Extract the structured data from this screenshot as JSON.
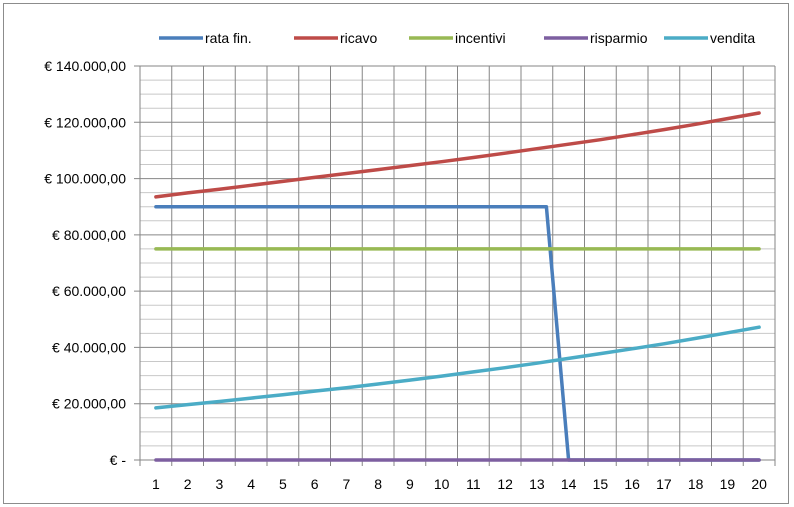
{
  "chart_data": {
    "type": "line",
    "x": [
      1,
      2,
      3,
      4,
      5,
      6,
      7,
      8,
      9,
      10,
      11,
      12,
      13,
      14,
      15,
      16,
      17,
      18,
      19,
      20
    ],
    "x_tick_labels": [
      "1",
      "2",
      "3",
      "4",
      "5",
      "6",
      "7",
      "8",
      "9",
      "10",
      "11",
      "12",
      "13",
      "14",
      "15",
      "16",
      "17",
      "18",
      "19",
      "20"
    ],
    "ylim": [
      0,
      140000
    ],
    "y_ticks": [
      0,
      20000,
      40000,
      60000,
      80000,
      100000,
      120000,
      140000
    ],
    "y_tick_labels": [
      "€ -",
      "€ 20.000,00",
      "€ 40.000,00",
      "€ 60.000,00",
      "€ 80.000,00",
      "€ 100.000,00",
      "€ 120.000,00",
      "€ 140.000,00"
    ],
    "grid": true,
    "legend_position": "top",
    "series": [
      {
        "name": "rata fin.",
        "color": "#4a7ebb",
        "values": [
          90000,
          90000,
          90000,
          90000,
          90000,
          90000,
          90000,
          90000,
          90000,
          90000,
          90000,
          90000,
          90000,
          0,
          0,
          0,
          0,
          0,
          0,
          0
        ],
        "points": [
          [
            1,
            90000
          ],
          [
            13.3,
            90000
          ],
          [
            14,
            0
          ],
          [
            20,
            0
          ]
        ]
      },
      {
        "name": "ricavo",
        "color": "#be4b48",
        "values": [
          93500,
          94900,
          96200,
          97600,
          99000,
          100400,
          101800,
          103200,
          104600,
          106000,
          107500,
          109000,
          110600,
          112200,
          113800,
          115600,
          117400,
          119300,
          121300,
          123300
        ]
      },
      {
        "name": "incentivi",
        "color": "#98b954",
        "values": [
          75000,
          75000,
          75000,
          75000,
          75000,
          75000,
          75000,
          75000,
          75000,
          75000,
          75000,
          75000,
          75000,
          75000,
          75000,
          75000,
          75000,
          75000,
          75000,
          75000
        ]
      },
      {
        "name": "risparmio",
        "color": "#7d5fa0",
        "values": [
          0,
          0,
          0,
          0,
          0,
          0,
          0,
          0,
          0,
          0,
          0,
          0,
          0,
          0,
          0,
          0,
          0,
          0,
          0,
          0
        ]
      },
      {
        "name": "vendita",
        "color": "#4bacc6",
        "values": [
          18500,
          19700,
          20800,
          22000,
          23200,
          24500,
          25700,
          27000,
          28400,
          29800,
          31300,
          32800,
          34400,
          36100,
          37800,
          39500,
          41300,
          43200,
          45200,
          47200
        ]
      }
    ]
  }
}
